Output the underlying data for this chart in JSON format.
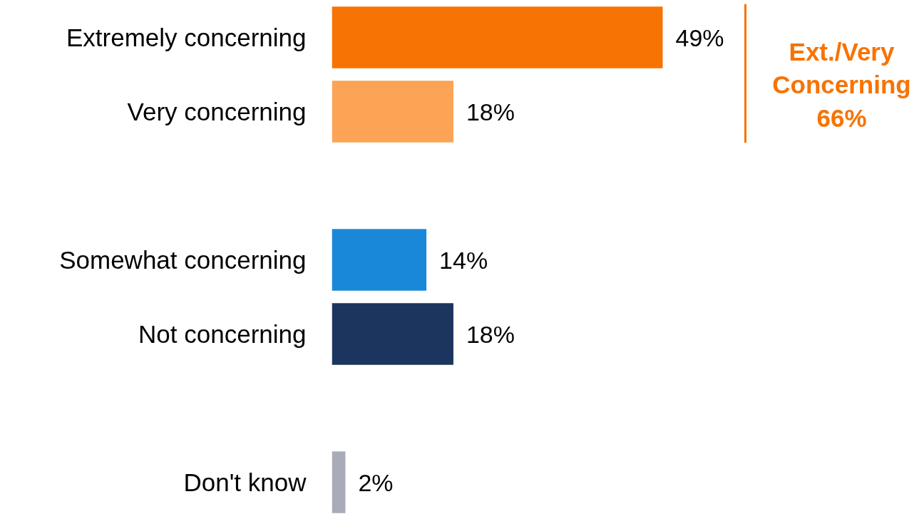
{
  "chart_data": {
    "type": "bar",
    "orientation": "horizontal",
    "categories": [
      "Extremely concerning",
      "Very concerning",
      null,
      "Somewhat concerning",
      "Not concerning",
      null,
      "Don't know"
    ],
    "values": [
      49,
      18,
      null,
      14,
      18,
      null,
      2
    ],
    "value_labels": [
      "49%",
      "18%",
      null,
      "14%",
      "18%",
      null,
      "2%"
    ],
    "colors": [
      "#f77303",
      "#fca355",
      null,
      "#1a88d8",
      "#1c355e",
      null,
      "#a9abb8"
    ],
    "annotations": [
      "Ext./Very Concerning 66%"
    ]
  }
}
